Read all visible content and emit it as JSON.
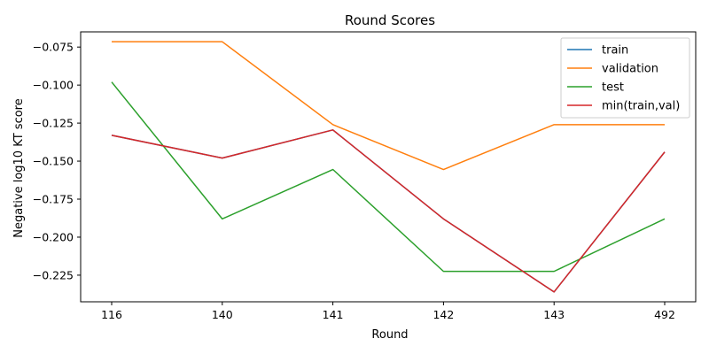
{
  "chart_data": {
    "type": "line",
    "title": "Round Scores",
    "xlabel": "Round",
    "ylabel": "Negative log10 KT score",
    "categories": [
      "116",
      "140",
      "141",
      "142",
      "143",
      "492"
    ],
    "ylim": [
      -0.2425,
      -0.065
    ],
    "yticks": [
      -0.225,
      -0.2,
      -0.175,
      -0.15,
      -0.125,
      -0.1,
      -0.075
    ],
    "ytick_labels": [
      "−0.225",
      "−0.200",
      "−0.175",
      "−0.150",
      "−0.125",
      "−0.100",
      "−0.075"
    ],
    "grid": false,
    "legend_position": "top-right",
    "series": [
      {
        "name": "train",
        "color": "#1f77b4",
        "values": [
          -0.133,
          -0.148,
          -0.1295,
          -0.188,
          -0.236,
          -0.144
        ]
      },
      {
        "name": "validation",
        "color": "#ff7f0e",
        "values": [
          -0.0715,
          -0.0715,
          -0.126,
          -0.1555,
          -0.126,
          -0.126
        ]
      },
      {
        "name": "test",
        "color": "#2ca02c",
        "values": [
          -0.098,
          -0.188,
          -0.1555,
          -0.2225,
          -0.2225,
          -0.188
        ]
      },
      {
        "name": "min(train,val)",
        "color": "#d62728",
        "values": [
          -0.133,
          -0.148,
          -0.1295,
          -0.188,
          -0.236,
          -0.144
        ]
      }
    ]
  }
}
